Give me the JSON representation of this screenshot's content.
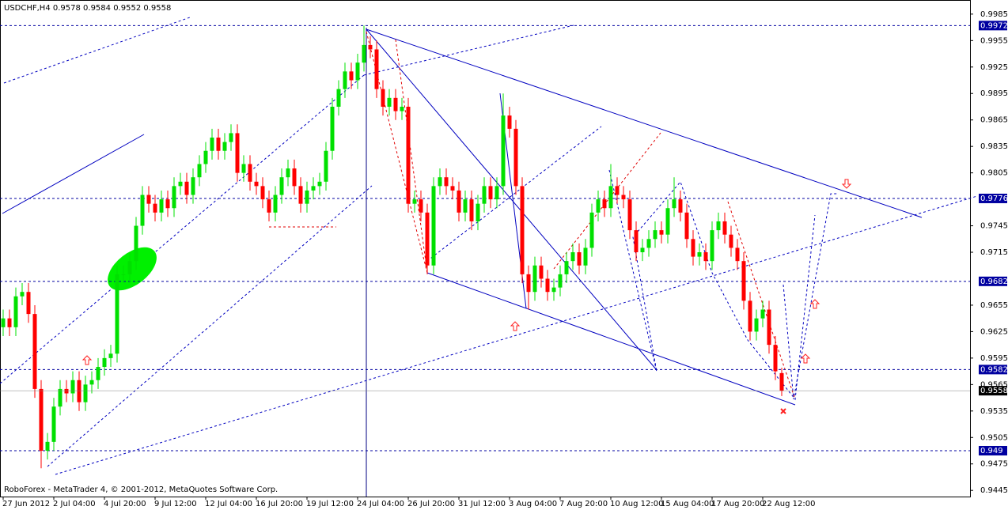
{
  "chart_data": {
    "type": "candlestick",
    "title": "USDCHF,H4  0.9578 0.9584 0.9552 0.9558",
    "footer": "RoboForex - MetaTrader 4, © 2001-2012, MetaQuotes Software Corp.",
    "categories": [
      "27 Jun 2012",
      null,
      null,
      null,
      null,
      null,
      null,
      null,
      "2 Jul 04:00",
      null,
      null,
      null,
      null,
      null,
      null,
      null,
      "4 Jul 20:00",
      null,
      null,
      null,
      null,
      null,
      null,
      null,
      "9 Jul 12:00",
      null,
      null,
      null,
      null,
      null,
      null,
      null,
      "12 Jul 04:00",
      null,
      null,
      null,
      null,
      null,
      null,
      null,
      "16 Jul 20:00",
      null,
      null,
      null,
      null,
      null,
      null,
      null,
      "19 Jul 12:00",
      null,
      null,
      null,
      null,
      null,
      null,
      null,
      "24 Jul 04:00",
      null,
      null,
      null,
      null,
      null,
      null,
      null,
      "26 Jul 20:00",
      null,
      null,
      null,
      null,
      null,
      null,
      null,
      "31 Jul 12:00",
      null,
      null,
      null,
      null,
      null,
      null,
      null,
      "3 Aug 04:00",
      null,
      null,
      null,
      null,
      null,
      null,
      null,
      "7 Aug 20:00",
      null,
      null,
      null,
      null,
      null,
      null,
      null,
      "10 Aug 12:00",
      null,
      null,
      null,
      null,
      null,
      null,
      null,
      "15 Aug 04:00",
      null,
      null,
      null,
      null,
      null,
      null,
      null,
      "17 Aug 20:00",
      null,
      null,
      null,
      null,
      null,
      null,
      null,
      "22 Aug 12:00",
      null,
      null,
      null
    ],
    "open": [
      0.963,
      0.964,
      0.963,
      0.9665,
      0.967,
      0.9645,
      0.956,
      0.949,
      0.95,
      0.954,
      0.956,
      0.9555,
      0.957,
      0.9545,
      0.9565,
      0.957,
      0.9585,
      0.9595,
      0.96,
      0.969,
      0.969,
      0.9705,
      0.9745,
      0.978,
      0.977,
      0.976,
      0.9775,
      0.9765,
      0.979,
      0.9795,
      0.978,
      0.98,
      0.9815,
      0.983,
      0.9845,
      0.983,
      0.984,
      0.985,
      0.9805,
      0.9815,
      0.9795,
      0.979,
      0.9775,
      0.976,
      0.978,
      0.98,
      0.981,
      0.979,
      0.977,
      0.9785,
      0.979,
      0.9795,
      0.983,
      0.988,
      0.99,
      0.992,
      0.991,
      0.993,
      0.995,
      0.9945,
      0.99,
      0.988,
      0.989,
      0.9875,
      0.988,
      0.977,
      0.9775,
      0.976,
      0.97,
      0.979,
      0.98,
      0.979,
      0.9785,
      0.976,
      0.9775,
      0.975,
      0.977,
      0.979,
      0.9775,
      0.979,
      0.987,
      0.9855,
      0.979,
      0.969,
      0.967,
      0.97,
      0.9685,
      0.967,
      0.9675,
      0.969,
      0.9705,
      0.9715,
      0.97,
      0.972,
      0.976,
      0.9775,
      0.9765,
      0.979,
      0.978,
      0.9775,
      0.974,
      0.9715,
      0.972,
      0.973,
      0.974,
      0.9735,
      0.9765,
      0.9775,
      0.976,
      0.973,
      0.971,
      0.9715,
      0.9705,
      0.974,
      0.975,
      0.9735,
      0.972,
      0.9705,
      0.966,
      0.9625,
      0.964,
      0.965,
      0.961,
      0.9578
    ],
    "high": [
      0.965,
      0.965,
      0.9675,
      0.968,
      0.968,
      0.9655,
      0.957,
      0.951,
      0.955,
      0.957,
      0.957,
      0.958,
      0.958,
      0.9575,
      0.958,
      0.9595,
      0.9605,
      0.961,
      0.97,
      0.97,
      0.9715,
      0.9755,
      0.979,
      0.979,
      0.978,
      0.9785,
      0.9785,
      0.98,
      0.9805,
      0.9805,
      0.981,
      0.9825,
      0.984,
      0.9855,
      0.9855,
      0.985,
      0.986,
      0.986,
      0.9825,
      0.9825,
      0.9805,
      0.98,
      0.9785,
      0.979,
      0.981,
      0.982,
      0.982,
      0.98,
      0.9795,
      0.98,
      0.9805,
      0.984,
      0.989,
      0.991,
      0.993,
      0.993,
      0.994,
      0.9972,
      0.996,
      0.9955,
      0.991,
      0.99,
      0.99,
      0.989,
      0.989,
      0.9785,
      0.9785,
      0.977,
      0.98,
      0.981,
      0.981,
      0.98,
      0.9795,
      0.9785,
      0.9785,
      0.978,
      0.98,
      0.98,
      0.98,
      0.9895,
      0.988,
      0.9865,
      0.98,
      0.97,
      0.971,
      0.971,
      0.9695,
      0.9685,
      0.97,
      0.9715,
      0.9725,
      0.9725,
      0.973,
      0.977,
      0.9785,
      0.9785,
      0.9815,
      0.98,
      0.979,
      0.9785,
      0.975,
      0.973,
      0.974,
      0.975,
      0.975,
      0.9775,
      0.98,
      0.9785,
      0.977,
      0.974,
      0.9725,
      0.9725,
      0.975,
      0.976,
      0.976,
      0.9745,
      0.973,
      0.9715,
      0.967,
      0.965,
      0.966,
      0.966,
      0.962,
      0.9584
    ],
    "low": [
      0.962,
      0.962,
      0.962,
      0.9655,
      0.9635,
      0.955,
      0.947,
      0.948,
      0.949,
      0.953,
      0.9545,
      0.9545,
      0.9535,
      0.9535,
      0.9555,
      0.956,
      0.9575,
      0.9585,
      0.959,
      0.968,
      0.968,
      0.9695,
      0.9735,
      0.976,
      0.975,
      0.975,
      0.9755,
      0.9755,
      0.978,
      0.977,
      0.977,
      0.979,
      0.9805,
      0.982,
      0.982,
      0.982,
      0.983,
      0.9795,
      0.9795,
      0.9785,
      0.978,
      0.9765,
      0.975,
      0.975,
      0.977,
      0.979,
      0.978,
      0.976,
      0.976,
      0.9775,
      0.978,
      0.9785,
      0.982,
      0.987,
      0.989,
      0.99,
      0.99,
      0.992,
      0.9935,
      0.989,
      0.987,
      0.987,
      0.9865,
      0.9865,
      0.976,
      0.976,
      0.975,
      0.969,
      0.969,
      0.978,
      0.978,
      0.9775,
      0.975,
      0.975,
      0.974,
      0.974,
      0.976,
      0.9765,
      0.9765,
      0.978,
      0.9845,
      0.978,
      0.968,
      0.965,
      0.966,
      0.9675,
      0.966,
      0.966,
      0.9665,
      0.968,
      0.9695,
      0.969,
      0.969,
      0.971,
      0.975,
      0.9755,
      0.9755,
      0.977,
      0.9765,
      0.973,
      0.9705,
      0.9705,
      0.971,
      0.972,
      0.9725,
      0.9725,
      0.9755,
      0.975,
      0.972,
      0.97,
      0.97,
      0.9695,
      0.9695,
      0.973,
      0.9725,
      0.971,
      0.9695,
      0.965,
      0.9615,
      0.9615,
      0.963,
      0.96,
      0.957,
      0.9552
    ],
    "close": [
      0.964,
      0.963,
      0.9665,
      0.967,
      0.9645,
      0.956,
      0.949,
      0.95,
      0.954,
      0.956,
      0.9555,
      0.957,
      0.9545,
      0.9565,
      0.957,
      0.9585,
      0.9595,
      0.96,
      0.969,
      0.969,
      0.9705,
      0.9745,
      0.978,
      0.977,
      0.976,
      0.9775,
      0.9765,
      0.979,
      0.9795,
      0.978,
      0.98,
      0.9815,
      0.983,
      0.9845,
      0.983,
      0.984,
      0.985,
      0.9805,
      0.9815,
      0.9795,
      0.979,
      0.9775,
      0.976,
      0.978,
      0.98,
      0.981,
      0.979,
      0.977,
      0.9785,
      0.979,
      0.9795,
      0.983,
      0.988,
      0.99,
      0.992,
      0.991,
      0.993,
      0.995,
      0.9945,
      0.99,
      0.988,
      0.989,
      0.9875,
      0.988,
      0.977,
      0.9775,
      0.976,
      0.97,
      0.979,
      0.98,
      0.979,
      0.9785,
      0.976,
      0.9775,
      0.975,
      0.977,
      0.979,
      0.9775,
      0.979,
      0.987,
      0.9855,
      0.979,
      0.969,
      0.967,
      0.97,
      0.9685,
      0.967,
      0.9675,
      0.969,
      0.9705,
      0.9715,
      0.97,
      0.972,
      0.976,
      0.9775,
      0.9765,
      0.979,
      0.978,
      0.9775,
      0.974,
      0.9715,
      0.972,
      0.973,
      0.974,
      0.9735,
      0.9765,
      0.9775,
      0.976,
      0.973,
      0.971,
      0.9715,
      0.9705,
      0.974,
      0.975,
      0.9735,
      0.972,
      0.9705,
      0.966,
      0.9625,
      0.964,
      0.965,
      0.961,
      0.958,
      0.9558
    ],
    "up_color": "#00e000",
    "down_color": "#ff0000",
    "ylim": [
      0.9438,
      1.0001
    ],
    "yticks": [
      0.9445,
      0.9475,
      0.9505,
      0.9535,
      0.9565,
      0.9595,
      0.9625,
      0.9655,
      0.9715,
      0.9745,
      0.9805,
      0.9835,
      0.9865,
      0.9895,
      0.9925,
      0.9955,
      0.9985
    ],
    "levels": [
      0.9972,
      0.9776,
      0.9682,
      0.9582,
      0.949
    ],
    "level_color": "#0000a0"
  }
}
